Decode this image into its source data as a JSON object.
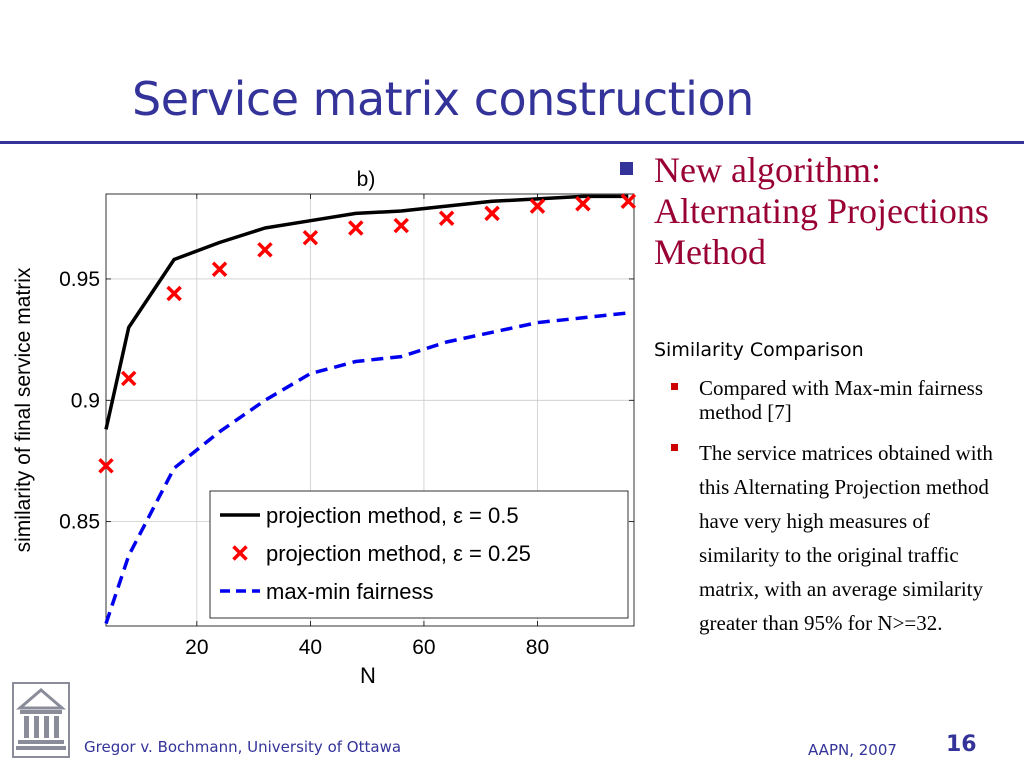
{
  "slide": {
    "title": "Service matrix construction",
    "accent_color": "#333399",
    "headline_color": "#990033"
  },
  "bullets": {
    "main": "New algorithm: Alternating Projections Method",
    "subheading": "Similarity Comparison",
    "items": [
      "Compared with Max-min fairness method [7]",
      "The service matrices obtained with this Alternating Projection method have very high measures of similarity to the original traffic matrix, with an average similarity greater than 95% for N>=32."
    ]
  },
  "footer": {
    "author": "Gregor v. Bochmann, University of Ottawa",
    "event": "AAPN, 2007",
    "page": "16",
    "logo_icon": "university-building-icon"
  },
  "chart_data": {
    "type": "line",
    "title": "b)",
    "xlabel": "N",
    "ylabel": "similarity of final service matrix",
    "xlim": [
      4,
      97
    ],
    "ylim": [
      0.807,
      0.985
    ],
    "xticks": [
      20,
      40,
      60,
      80
    ],
    "xtick_labels": [
      "20",
      "40",
      "60",
      "80"
    ],
    "yticks": [
      0.85,
      0.9,
      0.95
    ],
    "ytick_labels": [
      "0.85",
      "0.9",
      "0.95"
    ],
    "grid": true,
    "legend_position": "bottom-right",
    "series": [
      {
        "name": "projection method, ε = 0.5",
        "style": "solid-line",
        "color": "#000000",
        "x": [
          4,
          8,
          16,
          24,
          32,
          40,
          48,
          56,
          64,
          72,
          80,
          88,
          96
        ],
        "y": [
          0.888,
          0.93,
          0.958,
          0.965,
          0.971,
          0.974,
          0.977,
          0.978,
          0.98,
          0.982,
          0.983,
          0.984,
          0.984
        ]
      },
      {
        "name": "projection method, ε = 0.25",
        "style": "x-markers",
        "color": "#ff0000",
        "x": [
          4,
          8,
          16,
          24,
          32,
          40,
          48,
          56,
          64,
          72,
          80,
          88,
          96
        ],
        "y": [
          0.873,
          0.909,
          0.944,
          0.954,
          0.962,
          0.967,
          0.971,
          0.972,
          0.975,
          0.977,
          0.98,
          0.981,
          0.982
        ]
      },
      {
        "name": "max-min fairness",
        "style": "dashed-line",
        "color": "#0000ee",
        "x": [
          4,
          8,
          16,
          24,
          32,
          40,
          48,
          56,
          64,
          72,
          80,
          88,
          96
        ],
        "y": [
          0.808,
          0.836,
          0.872,
          0.887,
          0.9,
          0.911,
          0.916,
          0.918,
          0.924,
          0.928,
          0.932,
          0.934,
          0.936
        ]
      }
    ]
  }
}
